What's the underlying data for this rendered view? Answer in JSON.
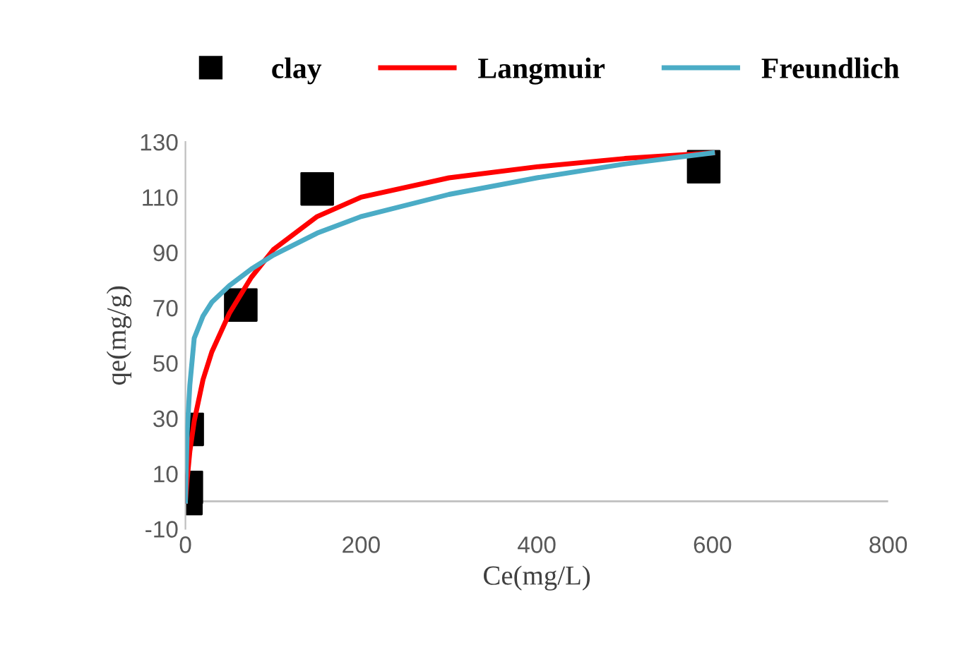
{
  "chart_data": {
    "type": "scatter",
    "xlabel": "Ce(mg/L)",
    "ylabel": "qe(mg/g)",
    "xlim": [
      0,
      800
    ],
    "xticks": [
      0,
      200,
      400,
      600,
      800
    ],
    "ylim": [
      -10,
      130
    ],
    "yticks": [
      -10,
      10,
      30,
      50,
      70,
      90,
      110,
      130
    ],
    "grid": false,
    "legend": "top",
    "series": [
      {
        "name": "clay",
        "marker": "square",
        "color": "#000000",
        "x": [
          0.5,
          1,
          2,
          63,
          150,
          590
        ],
        "values": [
          1,
          5,
          26,
          71,
          113,
          121
        ]
      },
      {
        "name": "Langmuir",
        "type": "line",
        "marker": "none",
        "color": "#ff0000",
        "x": [
          0,
          2,
          5,
          10,
          20,
          30,
          50,
          75,
          100,
          150,
          200,
          300,
          400,
          500,
          600
        ],
        "values": [
          0,
          8,
          18,
          29,
          44,
          54,
          68,
          81,
          91,
          103,
          110,
          117,
          121,
          124,
          126
        ]
      },
      {
        "name": "Freundlich",
        "type": "line",
        "marker": "none",
        "color": "#4bacc6",
        "x": [
          0,
          2,
          5,
          10,
          20,
          30,
          50,
          75,
          100,
          150,
          200,
          300,
          400,
          500,
          600
        ],
        "values": [
          0,
          25,
          42,
          59,
          67,
          72,
          78,
          84,
          89,
          97,
          103,
          111,
          117,
          122,
          126
        ]
      }
    ]
  }
}
